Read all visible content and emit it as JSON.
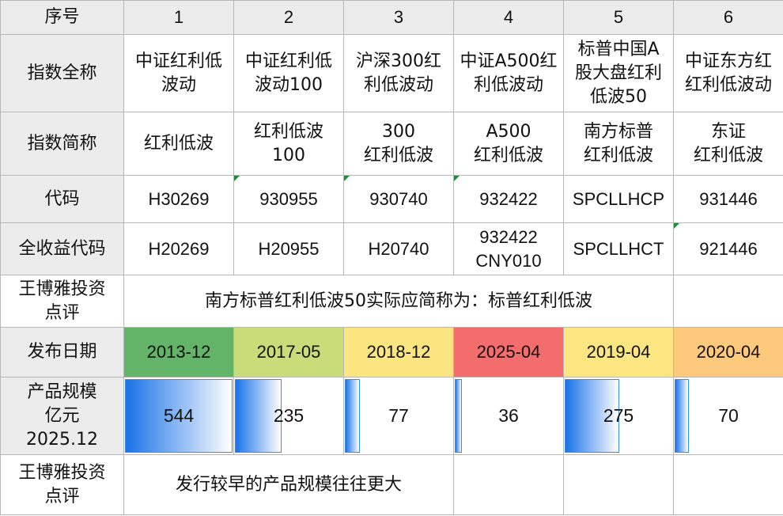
{
  "rows": {
    "seq": {
      "label": "序号",
      "values": [
        "1",
        "2",
        "3",
        "4",
        "5",
        "6"
      ]
    },
    "full_name": {
      "label": "指数全称",
      "values": [
        "中证红利低\n波动",
        "中证红利低\n波动100",
        "沪深300红\n利低波动",
        "中证A500红\n利低波动",
        "标普中国A\n股大盘红利\n低波50",
        "中证东方红\n红利低波动"
      ]
    },
    "short_name": {
      "label": "指数简称",
      "values": [
        "红利低波",
        "红利低波\n100",
        "300\n红利低波",
        "A500\n红利低波",
        "南方标普\n红利低波",
        "东证\n红利低波"
      ]
    },
    "code": {
      "label": "代码",
      "values": [
        "H30269",
        "930955",
        "930740",
        "932422",
        "SPCLLHCP",
        "931446"
      ]
    },
    "tr_code": {
      "label": "全收益代码",
      "values": [
        "H20269",
        "H20955",
        "H20740",
        "932422\nCNY010",
        "SPCLLHCT",
        "921446"
      ]
    },
    "comment1": {
      "label": "王博雅投资\n点评",
      "text": "南方标普红利低波50实际应简称为：标普红利低波"
    },
    "release_date": {
      "label": "发布日期",
      "values": [
        "2013-12",
        "2017-05",
        "2018-12",
        "2025-04",
        "2019-04",
        "2020-04"
      ],
      "colors": [
        "#63b469",
        "#c9dc7a",
        "#fbe581",
        "#f46d6d",
        "#fce682",
        "#fdca7d"
      ]
    },
    "scale": {
      "label": "产品规模\n亿元\n2025.12",
      "values": [
        544,
        235,
        77,
        36,
        275,
        70
      ],
      "max": 544
    },
    "comment2": {
      "label": "王博雅投资\n点评",
      "text": "发行较早的产品规模往往更大"
    }
  }
}
